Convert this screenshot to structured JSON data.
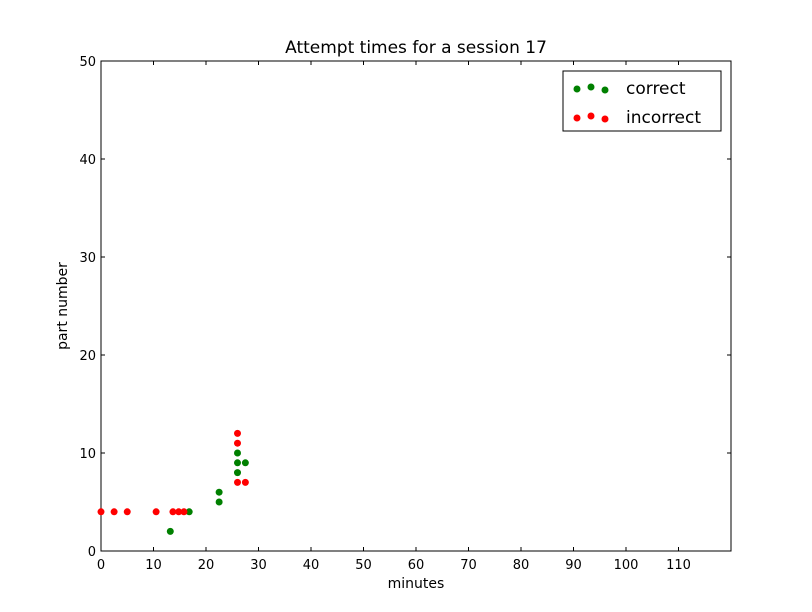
{
  "chart_data": {
    "type": "scatter",
    "title": "Attempt times for a session 17",
    "xlabel": "minutes",
    "ylabel": "part number",
    "xlim": [
      0,
      120
    ],
    "ylim": [
      0,
      50
    ],
    "xticks": [
      0,
      10,
      20,
      30,
      40,
      50,
      60,
      70,
      80,
      90,
      100,
      110
    ],
    "yticks": [
      0,
      10,
      20,
      30,
      40,
      50
    ],
    "grid": false,
    "legend_position": "top-right",
    "series": [
      {
        "name": "correct",
        "color": "#008000",
        "points": [
          {
            "x": 13.2,
            "y": 2
          },
          {
            "x": 16.8,
            "y": 4
          },
          {
            "x": 22.5,
            "y": 5
          },
          {
            "x": 22.5,
            "y": 6
          },
          {
            "x": 26.0,
            "y": 8
          },
          {
            "x": 26.0,
            "y": 9
          },
          {
            "x": 27.5,
            "y": 9
          },
          {
            "x": 26.0,
            "y": 10
          }
        ]
      },
      {
        "name": "incorrect",
        "color": "#ff0000",
        "points": [
          {
            "x": 0,
            "y": 4
          },
          {
            "x": 2.5,
            "y": 4
          },
          {
            "x": 5.0,
            "y": 4
          },
          {
            "x": 10.5,
            "y": 4
          },
          {
            "x": 13.7,
            "y": 4
          },
          {
            "x": 14.8,
            "y": 4
          },
          {
            "x": 15.8,
            "y": 4
          },
          {
            "x": 26.0,
            "y": 7
          },
          {
            "x": 27.5,
            "y": 7
          },
          {
            "x": 26.0,
            "y": 11
          },
          {
            "x": 26.0,
            "y": 12
          }
        ]
      }
    ]
  }
}
